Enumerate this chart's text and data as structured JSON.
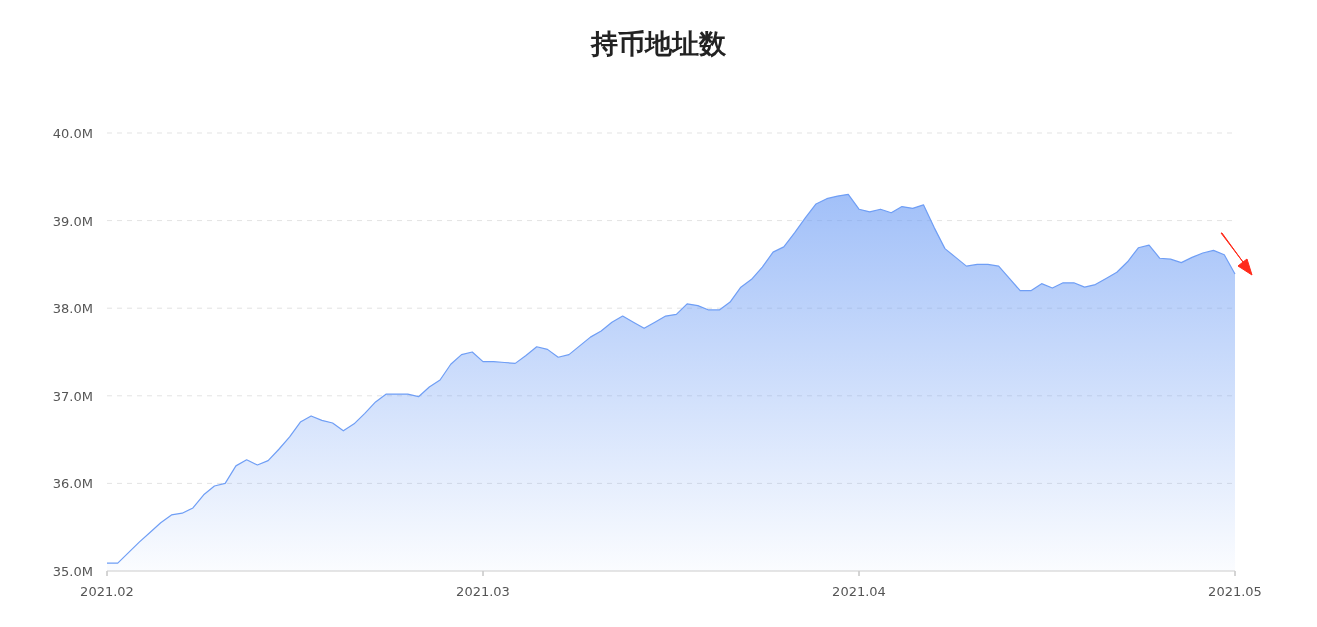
{
  "chart_data": {
    "type": "area",
    "title": "持币地址数",
    "grid": "y",
    "marker": "none",
    "color": "#6f9ef5",
    "ylim": [
      35,
      40
    ],
    "yticks": [
      {
        "value": 35,
        "label": "35.0M"
      },
      {
        "value": 36,
        "label": "36.0M"
      },
      {
        "value": 37,
        "label": "37.0M"
      },
      {
        "value": 38,
        "label": "38.0M"
      },
      {
        "value": 39,
        "label": "39.0M"
      },
      {
        "value": 40,
        "label": "40.0M"
      }
    ],
    "categories": [
      "2021.02",
      null,
      null,
      null,
      null,
      null,
      null,
      null,
      null,
      null,
      null,
      null,
      null,
      null,
      null,
      null,
      null,
      null,
      null,
      null,
      null,
      null,
      null,
      null,
      null,
      null,
      null,
      null,
      null,
      null,
      null,
      null,
      null,
      null,
      null,
      "2021.03",
      null,
      null,
      null,
      null,
      null,
      null,
      null,
      null,
      null,
      null,
      null,
      null,
      null,
      null,
      null,
      null,
      null,
      null,
      null,
      null,
      null,
      null,
      null,
      null,
      null,
      null,
      null,
      null,
      null,
      null,
      null,
      null,
      null,
      null,
      "2021.04",
      null,
      null,
      null,
      null,
      null,
      null,
      null,
      null,
      null,
      null,
      null,
      null,
      null,
      null,
      null,
      null,
      null,
      null,
      null,
      null,
      null,
      null,
      null,
      null,
      null,
      null,
      null,
      null,
      null,
      null,
      null,
      null,
      null,
      null,
      "2021.05"
    ],
    "values": [
      35.09,
      35.09,
      35.21,
      35.33,
      35.44,
      35.55,
      35.64,
      35.66,
      35.72,
      35.87,
      35.97,
      36.0,
      36.2,
      36.27,
      36.21,
      36.26,
      36.39,
      36.53,
      36.7,
      36.77,
      36.72,
      36.69,
      36.6,
      36.68,
      36.8,
      36.93,
      37.02,
      37.02,
      37.02,
      36.99,
      37.1,
      37.18,
      37.36,
      37.47,
      37.5,
      37.39,
      37.39,
      37.38,
      37.37,
      37.46,
      37.56,
      37.53,
      37.44,
      37.47,
      37.57,
      37.67,
      37.74,
      37.84,
      37.91,
      37.84,
      37.77,
      37.84,
      37.91,
      37.93,
      38.05,
      38.03,
      37.98,
      37.98,
      38.07,
      38.24,
      38.33,
      38.47,
      38.64,
      38.7,
      38.86,
      39.03,
      39.19,
      39.25,
      39.28,
      39.3,
      39.13,
      39.1,
      39.13,
      39.09,
      39.16,
      39.14,
      39.18,
      38.92,
      38.68,
      38.58,
      38.48,
      38.5,
      38.5,
      38.48,
      38.34,
      38.2,
      38.2,
      38.28,
      38.23,
      38.29,
      38.29,
      38.24,
      38.27,
      38.34,
      38.41,
      38.53,
      38.69,
      38.72,
      38.57,
      38.56,
      38.52,
      38.58,
      38.63,
      38.66,
      38.61,
      38.39
    ]
  }
}
